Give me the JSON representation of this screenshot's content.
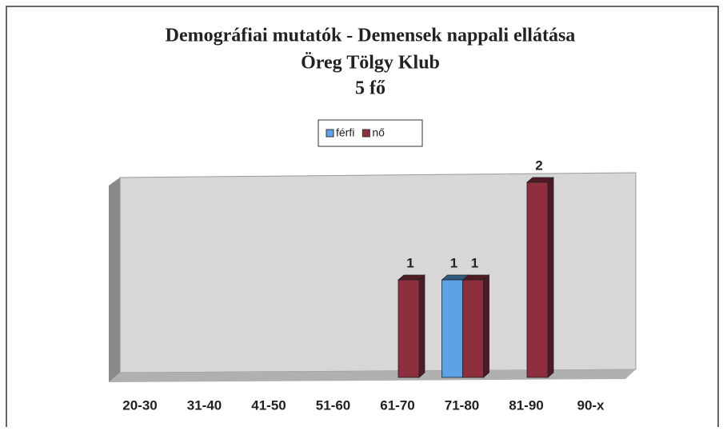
{
  "chart_data": {
    "type": "bar3d",
    "title": [
      "Demográfiai mutatók - Demensek nappali ellátása",
      "Öreg Tölgy Klub",
      "5 fő"
    ],
    "categories": [
      "20-30",
      "31-40",
      "41-50",
      "51-60",
      "61-70",
      "71-80",
      "81-90",
      "90-x"
    ],
    "series": [
      {
        "name": "férfi",
        "color": "#5ba3e6",
        "values": [
          0,
          0,
          0,
          0,
          0,
          1,
          0,
          0
        ]
      },
      {
        "name": "nő",
        "color": "#8e2f40",
        "values": [
          0,
          0,
          0,
          0,
          1,
          1,
          2,
          0
        ]
      }
    ],
    "ylim": [
      0,
      2
    ],
    "legend": "top"
  }
}
